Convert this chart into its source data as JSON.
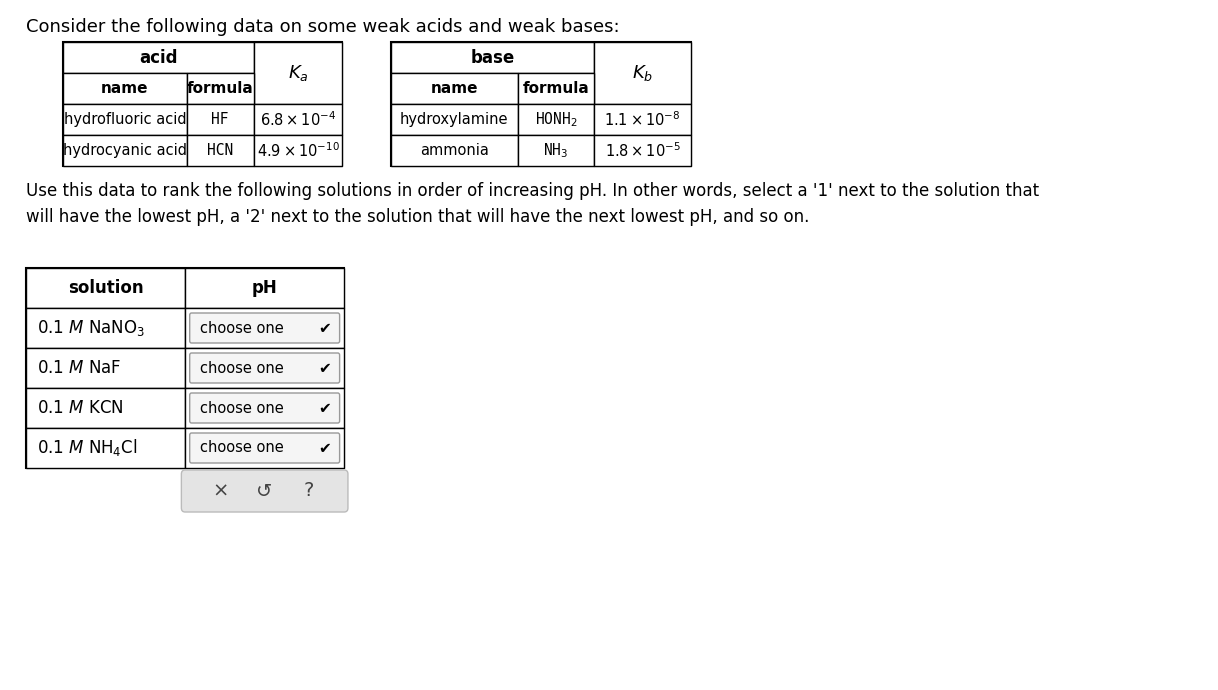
{
  "title_text": "Consider the following data on some weak acids and weak bases:",
  "bg_color": "#ffffff",
  "paragraph_text": "Use this data to rank the following solutions in order of increasing pH. In other words, select a '1' next to the solution that\nwill have the lowest pH, a '2' next to the solution that will have the next lowest pH, and so on.",
  "acid_rows": [
    {
      "name": "hydrofluoric acid",
      "formula": "HF",
      "k": "6.8 \\times 10^{-4}"
    },
    {
      "name": "hydrocyanic acid",
      "formula": "HCN",
      "k": "4.9 \\times 10^{-10}"
    }
  ],
  "base_rows": [
    {
      "name": "hydroxylamine",
      "formula_tex": "HONH$_2$",
      "k": "1.1 \\times 10^{-8}"
    },
    {
      "name": "ammonia",
      "formula_tex": "NH$_3$",
      "k": "1.8 \\times 10^{-5}"
    }
  ],
  "sol_labels": [
    "0.1 $M$ NaNO$_3$",
    "0.1 $M$ NaF",
    "0.1 $M$ KCN",
    "0.1 $M$ NH$_4$Cl"
  ],
  "button_symbols": [
    "x",
    "5",
    "?"
  ]
}
